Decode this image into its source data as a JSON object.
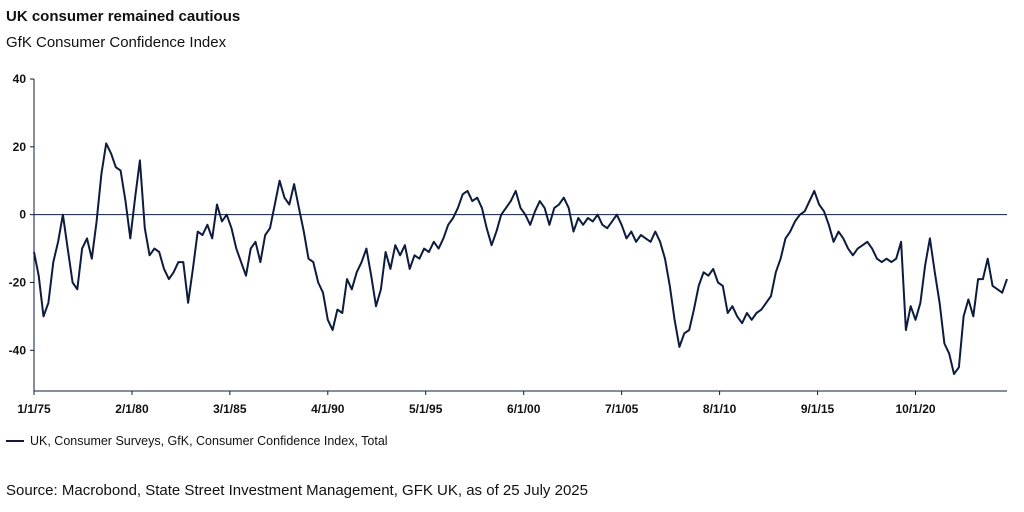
{
  "colors": {
    "line": "#0d1b3e",
    "axis": "#0d1b3e",
    "text": "#111111"
  },
  "title": "UK consumer remained cautious",
  "subtitle": "GfK Consumer Confidence Index",
  "legend_label": "UK, Consumer Surveys, GfK, Consumer Confidence Index, Total",
  "source": "Source: Macrobond, State Street Investment Management, GFK UK, as of 25 July 2025",
  "chart_data": {
    "type": "line",
    "title": "UK consumer remained cautious",
    "subtitle": "GfK Consumer Confidence Index",
    "xlim": [
      "1975-01-01",
      "2025-07-01"
    ],
    "ylim": [
      -52,
      40
    ],
    "yticks": [
      40,
      20,
      0,
      -20,
      -40
    ],
    "xticks": [
      "1/1/75",
      "2/1/80",
      "3/1/85",
      "4/1/90",
      "5/1/95",
      "6/1/00",
      "7/1/05",
      "8/1/10",
      "9/1/15",
      "10/1/20"
    ],
    "xtick_dates": [
      "1975-01-01",
      "1980-02-01",
      "1985-03-01",
      "1990-04-01",
      "1995-05-01",
      "2000-06-01",
      "2005-07-01",
      "2010-08-01",
      "2015-09-01",
      "2020-10-01"
    ],
    "zero_line": true,
    "grid": false,
    "legend_position": "bottom-left",
    "series": [
      {
        "name": "UK, Consumer Surveys, GfK, Consumer Confidence Index, Total",
        "points": [
          [
            "1975-01-01",
            -11
          ],
          [
            "1975-04-01",
            -18
          ],
          [
            "1975-07-01",
            -30
          ],
          [
            "1975-10-01",
            -26
          ],
          [
            "1976-01-01",
            -14
          ],
          [
            "1976-04-01",
            -8
          ],
          [
            "1976-07-01",
            0
          ],
          [
            "1976-10-01",
            -10
          ],
          [
            "1977-01-01",
            -20
          ],
          [
            "1977-04-01",
            -22
          ],
          [
            "1977-07-01",
            -10
          ],
          [
            "1977-10-01",
            -7
          ],
          [
            "1978-01-01",
            -13
          ],
          [
            "1978-04-01",
            -2
          ],
          [
            "1978-07-01",
            12
          ],
          [
            "1978-10-01",
            21
          ],
          [
            "1979-01-01",
            18
          ],
          [
            "1979-04-01",
            14
          ],
          [
            "1979-07-01",
            13
          ],
          [
            "1979-10-01",
            4
          ],
          [
            "1980-01-01",
            -7
          ],
          [
            "1980-04-01",
            5
          ],
          [
            "1980-07-01",
            16
          ],
          [
            "1980-10-01",
            -4
          ],
          [
            "1981-01-01",
            -12
          ],
          [
            "1981-04-01",
            -10
          ],
          [
            "1981-07-01",
            -11
          ],
          [
            "1981-10-01",
            -16
          ],
          [
            "1982-01-01",
            -19
          ],
          [
            "1982-04-01",
            -17
          ],
          [
            "1982-07-01",
            -14
          ],
          [
            "1982-10-01",
            -14
          ],
          [
            "1983-01-01",
            -26
          ],
          [
            "1983-04-01",
            -16
          ],
          [
            "1983-07-01",
            -5
          ],
          [
            "1983-10-01",
            -6
          ],
          [
            "1984-01-01",
            -3
          ],
          [
            "1984-04-01",
            -7
          ],
          [
            "1984-07-01",
            3
          ],
          [
            "1984-10-01",
            -2
          ],
          [
            "1985-01-01",
            0
          ],
          [
            "1985-04-01",
            -4
          ],
          [
            "1985-07-01",
            -10
          ],
          [
            "1985-10-01",
            -14
          ],
          [
            "1986-01-01",
            -18
          ],
          [
            "1986-04-01",
            -10
          ],
          [
            "1986-07-01",
            -8
          ],
          [
            "1986-10-01",
            -14
          ],
          [
            "1987-01-01",
            -6
          ],
          [
            "1987-04-01",
            -4
          ],
          [
            "1987-07-01",
            3
          ],
          [
            "1987-10-01",
            10
          ],
          [
            "1988-01-01",
            5
          ],
          [
            "1988-04-01",
            3
          ],
          [
            "1988-07-01",
            9
          ],
          [
            "1988-10-01",
            2
          ],
          [
            "1989-01-01",
            -5
          ],
          [
            "1989-04-01",
            -13
          ],
          [
            "1989-07-01",
            -14
          ],
          [
            "1989-10-01",
            -20
          ],
          [
            "1990-01-01",
            -23
          ],
          [
            "1990-04-01",
            -31
          ],
          [
            "1990-07-01",
            -34
          ],
          [
            "1990-10-01",
            -28
          ],
          [
            "1991-01-01",
            -29
          ],
          [
            "1991-04-01",
            -19
          ],
          [
            "1991-07-01",
            -22
          ],
          [
            "1991-10-01",
            -17
          ],
          [
            "1992-01-01",
            -14
          ],
          [
            "1992-04-01",
            -10
          ],
          [
            "1992-07-01",
            -18
          ],
          [
            "1992-10-01",
            -27
          ],
          [
            "1993-01-01",
            -22
          ],
          [
            "1993-04-01",
            -11
          ],
          [
            "1993-07-01",
            -16
          ],
          [
            "1993-10-01",
            -9
          ],
          [
            "1994-01-01",
            -12
          ],
          [
            "1994-04-01",
            -9
          ],
          [
            "1994-07-01",
            -16
          ],
          [
            "1994-10-01",
            -12
          ],
          [
            "1995-01-01",
            -13
          ],
          [
            "1995-04-01",
            -10
          ],
          [
            "1995-07-01",
            -11
          ],
          [
            "1995-10-01",
            -8
          ],
          [
            "1996-01-01",
            -10
          ],
          [
            "1996-04-01",
            -7
          ],
          [
            "1996-07-01",
            -3
          ],
          [
            "1996-10-01",
            -1
          ],
          [
            "1997-01-01",
            2
          ],
          [
            "1997-04-01",
            6
          ],
          [
            "1997-07-01",
            7
          ],
          [
            "1997-10-01",
            4
          ],
          [
            "1998-01-01",
            5
          ],
          [
            "1998-04-01",
            2
          ],
          [
            "1998-07-01",
            -4
          ],
          [
            "1998-10-01",
            -9
          ],
          [
            "1999-01-01",
            -5
          ],
          [
            "1999-04-01",
            0
          ],
          [
            "1999-07-01",
            2
          ],
          [
            "1999-10-01",
            4
          ],
          [
            "2000-01-01",
            7
          ],
          [
            "2000-04-01",
            2
          ],
          [
            "2000-07-01",
            0
          ],
          [
            "2000-10-01",
            -3
          ],
          [
            "2001-01-01",
            1
          ],
          [
            "2001-04-01",
            4
          ],
          [
            "2001-07-01",
            2
          ],
          [
            "2001-10-01",
            -3
          ],
          [
            "2002-01-01",
            2
          ],
          [
            "2002-04-01",
            3
          ],
          [
            "2002-07-01",
            5
          ],
          [
            "2002-10-01",
            2
          ],
          [
            "2003-01-01",
            -5
          ],
          [
            "2003-04-01",
            -1
          ],
          [
            "2003-07-01",
            -3
          ],
          [
            "2003-10-01",
            -1
          ],
          [
            "2004-01-01",
            -2
          ],
          [
            "2004-04-01",
            0
          ],
          [
            "2004-07-01",
            -3
          ],
          [
            "2004-10-01",
            -4
          ],
          [
            "2005-01-01",
            -2
          ],
          [
            "2005-04-01",
            0
          ],
          [
            "2005-07-01",
            -3
          ],
          [
            "2005-10-01",
            -7
          ],
          [
            "2006-01-01",
            -5
          ],
          [
            "2006-04-01",
            -8
          ],
          [
            "2006-07-01",
            -6
          ],
          [
            "2006-10-01",
            -7
          ],
          [
            "2007-01-01",
            -8
          ],
          [
            "2007-04-01",
            -5
          ],
          [
            "2007-07-01",
            -8
          ],
          [
            "2007-10-01",
            -13
          ],
          [
            "2008-01-01",
            -21
          ],
          [
            "2008-04-01",
            -31
          ],
          [
            "2008-07-01",
            -39
          ],
          [
            "2008-10-01",
            -35
          ],
          [
            "2009-01-01",
            -34
          ],
          [
            "2009-04-01",
            -28
          ],
          [
            "2009-07-01",
            -21
          ],
          [
            "2009-10-01",
            -17
          ],
          [
            "2010-01-01",
            -18
          ],
          [
            "2010-04-01",
            -16
          ],
          [
            "2010-07-01",
            -20
          ],
          [
            "2010-10-01",
            -21
          ],
          [
            "2011-01-01",
            -29
          ],
          [
            "2011-04-01",
            -27
          ],
          [
            "2011-07-01",
            -30
          ],
          [
            "2011-10-01",
            -32
          ],
          [
            "2012-01-01",
            -29
          ],
          [
            "2012-04-01",
            -31
          ],
          [
            "2012-07-01",
            -29
          ],
          [
            "2012-10-01",
            -28
          ],
          [
            "2013-01-01",
            -26
          ],
          [
            "2013-04-01",
            -24
          ],
          [
            "2013-07-01",
            -17
          ],
          [
            "2013-10-01",
            -13
          ],
          [
            "2014-01-01",
            -7
          ],
          [
            "2014-04-01",
            -5
          ],
          [
            "2014-07-01",
            -2
          ],
          [
            "2014-10-01",
            0
          ],
          [
            "2015-01-01",
            1
          ],
          [
            "2015-04-01",
            4
          ],
          [
            "2015-07-01",
            7
          ],
          [
            "2015-10-01",
            3
          ],
          [
            "2016-01-01",
            1
          ],
          [
            "2016-04-01",
            -3
          ],
          [
            "2016-07-01",
            -8
          ],
          [
            "2016-10-01",
            -5
          ],
          [
            "2017-01-01",
            -7
          ],
          [
            "2017-04-01",
            -10
          ],
          [
            "2017-07-01",
            -12
          ],
          [
            "2017-10-01",
            -10
          ],
          [
            "2018-01-01",
            -9
          ],
          [
            "2018-04-01",
            -8
          ],
          [
            "2018-07-01",
            -10
          ],
          [
            "2018-10-01",
            -13
          ],
          [
            "2019-01-01",
            -14
          ],
          [
            "2019-04-01",
            -13
          ],
          [
            "2019-07-01",
            -14
          ],
          [
            "2019-10-01",
            -13
          ],
          [
            "2020-01-01",
            -8
          ],
          [
            "2020-04-01",
            -34
          ],
          [
            "2020-07-01",
            -27
          ],
          [
            "2020-10-01",
            -31
          ],
          [
            "2021-01-01",
            -26
          ],
          [
            "2021-04-01",
            -15
          ],
          [
            "2021-07-01",
            -7
          ],
          [
            "2021-10-01",
            -17
          ],
          [
            "2022-01-01",
            -26
          ],
          [
            "2022-04-01",
            -38
          ],
          [
            "2022-07-01",
            -41
          ],
          [
            "2022-10-01",
            -47
          ],
          [
            "2023-01-01",
            -45
          ],
          [
            "2023-04-01",
            -30
          ],
          [
            "2023-07-01",
            -25
          ],
          [
            "2023-10-01",
            -30
          ],
          [
            "2024-01-01",
            -19
          ],
          [
            "2024-04-01",
            -19
          ],
          [
            "2024-07-01",
            -13
          ],
          [
            "2024-10-01",
            -21
          ],
          [
            "2025-01-01",
            -22
          ],
          [
            "2025-04-01",
            -23
          ],
          [
            "2025-07-01",
            -19
          ]
        ]
      }
    ]
  }
}
